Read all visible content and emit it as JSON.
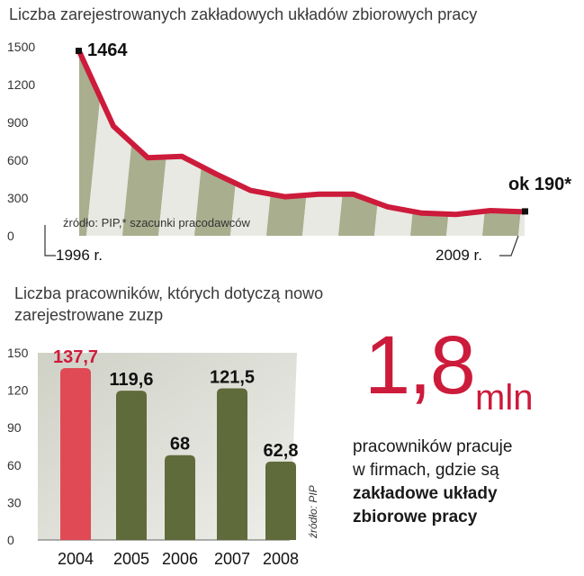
{
  "chart_data": [
    {
      "type": "area",
      "title": "Liczba zarejestrowanych zakładowych układów zbiorowych pracy",
      "x": [
        1996,
        1997,
        1998,
        1999,
        2000,
        2001,
        2002,
        2003,
        2004,
        2005,
        2006,
        2007,
        2008,
        2009
      ],
      "y": [
        1464,
        870,
        620,
        630,
        490,
        360,
        310,
        330,
        330,
        230,
        180,
        170,
        200,
        190
      ],
      "x_labels": [
        "1996 r.",
        "2009 r."
      ],
      "yticks": [
        0,
        300,
        600,
        900,
        1200,
        1500
      ],
      "ylim": [
        0,
        1500
      ],
      "annotations": [
        "1464",
        "ok 190*"
      ],
      "source": "źródło: PIP,* szacunki pracodawców"
    },
    {
      "type": "bar",
      "title": "Liczba pracowników, których dotyczą nowo zarejestrowane zuzp",
      "categories": [
        "2004",
        "2005",
        "2006",
        "2007",
        "2008"
      ],
      "values": [
        137.7,
        119.6,
        68,
        121.5,
        62.8
      ],
      "value_labels": [
        "137,7",
        "119,6",
        "68",
        "121,5",
        "62,8"
      ],
      "yticks": [
        0,
        30,
        60,
        90,
        120,
        150
      ],
      "ylim": [
        0,
        150
      ],
      "source": "źródło: PIP"
    }
  ],
  "callout": {
    "number": "1,8",
    "unit": "mln",
    "line1": "pracowników pracuje",
    "line2": "w firmach, gdzie są",
    "line3": "zakładowe układy",
    "line4": "zbiorowe pracy"
  },
  "colors": {
    "accent_red": "#cc1b3b",
    "bar_dark": "#5f6b3a",
    "bar_highlight": "#e04a55",
    "area_light": "#e8e9e2",
    "area_dark": "#8c9368"
  }
}
